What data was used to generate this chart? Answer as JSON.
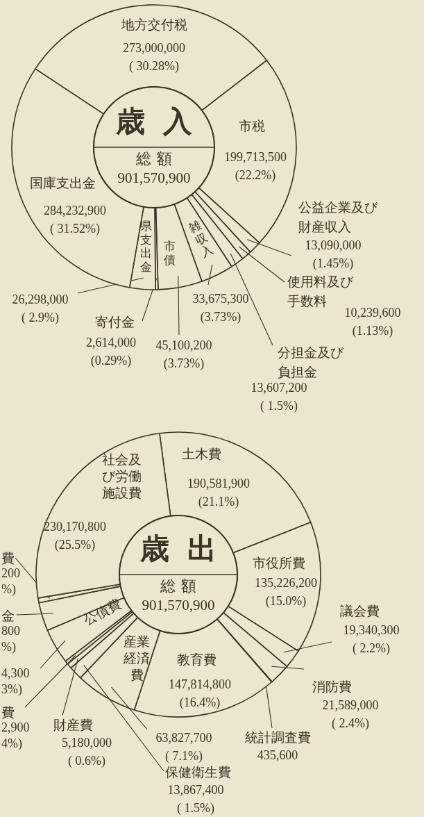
{
  "chart_data": [
    {
      "type": "donut",
      "title": "歳入",
      "subtitle": "総額",
      "annotations": [
        "901,570,900"
      ],
      "categories": [
        "地方交付税",
        "市税",
        "公益企業及び財産収入",
        "使用料及び手数料",
        "分担金及び負担金",
        "雑収入",
        "市債",
        "寄付金",
        "県支出金",
        "国庫支出金"
      ],
      "values": [
        273000000,
        199713500,
        13090000,
        10239600,
        13607200,
        33675300,
        45100200,
        2614000,
        26298000,
        284232900
      ],
      "colors": [
        "#ece5cf",
        "#ece5cf",
        "#ece5cf",
        "#ece5cf",
        "#ece5cf",
        "#ece5cf",
        "#ece5cf",
        "#ece5cf",
        "#ece5cf",
        "#ece5cf"
      ],
      "value_labels": [
        "273,000,000\n( 30.28%)",
        "199,713,500\n(22.2%)",
        "13,090,000\n(1.45%)",
        "10,239,600\n(1.13%)",
        "13,607,200\n( 1.5%)",
        "33,675,300\n(3.73%)",
        "45,100,200\n(3.73%)",
        "2,614,000\n(0.29%)",
        "26,298,000\n( 2.9%)",
        "284,232,900\n( 31.52%)"
      ]
    },
    {
      "type": "donut",
      "title": "歳出",
      "subtitle": "総額",
      "annotations": [
        "901,570,900",
        "200\n%)",
        "800\n%)",
        "4,300\n3%)",
        "2,900\n4%)"
      ],
      "categories": [
        "土木費",
        "市役所費",
        "議会費",
        "消防費",
        "統計調査費",
        "教育費",
        "産業経済費",
        "保健衛生費",
        "財産費",
        "費",
        "公債費",
        "金",
        "費",
        "社会及び労働施設費"
      ],
      "values": [
        190581900,
        135226200,
        19340300,
        21589000,
        435600,
        147814800,
        63827700,
        13867400,
        5180000,
        3602900,
        36024300,
        29009800,
        4900200,
        230170800
      ],
      "colors": [
        "#ece5cf",
        "#ece5cf",
        "#ece5cf",
        "#ece5cf",
        "#ece5cf",
        "#ece5cf",
        "#ece5cf",
        "#ece5cf",
        "#ece5cf",
        "#ece5cf",
        "#ece5cf",
        "#ece5cf",
        "#ece5cf",
        "#ece5cf"
      ],
      "value_labels": [
        "190,581,900\n(21.1%)",
        "135,226,200\n(15.0%)",
        "19,340,300\n( 2.2%)",
        "21,589,000\n( 2.4%)",
        "435,600",
        "147,814,800\n(16.4%)",
        "63,827,700\n( 7.1%)",
        "13,867,400\n( 1.5%)",
        "5,180,000\n( 0.6%)",
        null,
        null,
        null,
        null,
        "230,170,800\n(25.5%)"
      ]
    }
  ]
}
